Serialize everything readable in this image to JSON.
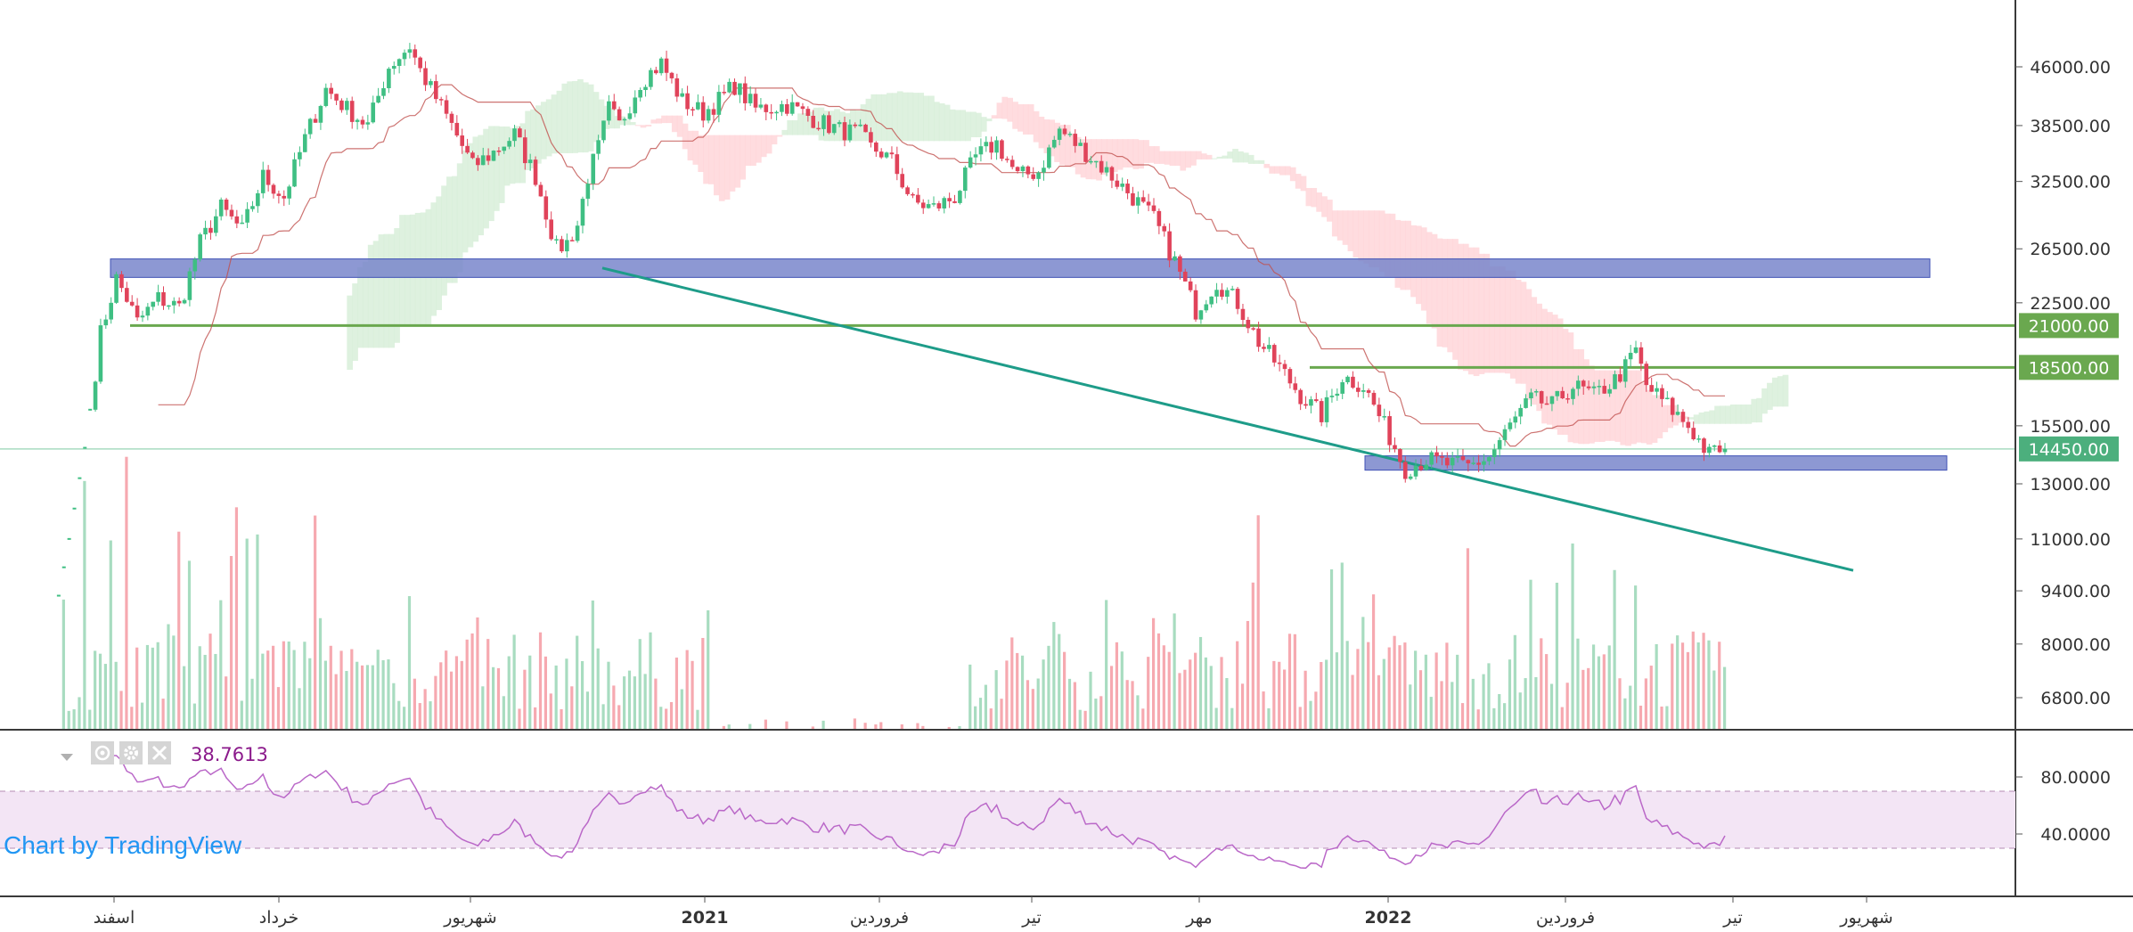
{
  "chart_data": {
    "type": "candlestick",
    "subtitle": "",
    "price_axis": {
      "scale": "log",
      "ticks": [
        "46000.00",
        "38500.00",
        "32500.00",
        "26500.00",
        "22500.00",
        "15500.00",
        "13000.00",
        "11000.00",
        "9400.00",
        "8000.00",
        "6800.00"
      ],
      "range": [
        6200,
        52000
      ]
    },
    "time_axis": {
      "labels": [
        "اسفند",
        "خرداد",
        "شهریور",
        "2021",
        "فروردین",
        "تیر",
        "مهر",
        "2022",
        "فروردین",
        "تیر",
        "شهریور"
      ],
      "bold_labels": [
        "2021",
        "2022"
      ]
    },
    "horizontal_levels": [
      {
        "label": "21000.00",
        "value": 21000,
        "color": "#6aa84f"
      },
      {
        "label": "18500.00",
        "value": 18500,
        "color": "#6aa84f"
      }
    ],
    "last_price": {
      "label": "14450.00",
      "value": 14450,
      "color": "#4caf7d"
    },
    "support_zones": [
      {
        "name": "upper-zone",
        "from": 24300,
        "to": 25700,
        "color": "#7986cb"
      },
      {
        "name": "lower-zone",
        "from": 13550,
        "to": 14150,
        "color": "#7986cb"
      }
    ],
    "trendline": {
      "from": 25000,
      "to": 10000,
      "color": "#1e9c89"
    },
    "series": [
      {
        "name": "close",
        "kind": "candles",
        "points": [
          [
            0,
            8500
          ],
          [
            3,
            11000
          ],
          [
            6,
            14500
          ],
          [
            9,
            20500
          ],
          [
            12,
            24200
          ],
          [
            14,
            22800
          ],
          [
            16,
            21200
          ],
          [
            20,
            22800
          ],
          [
            24,
            22200
          ],
          [
            28,
            27000
          ],
          [
            32,
            30000
          ],
          [
            36,
            28000
          ],
          [
            40,
            33000
          ],
          [
            44,
            31000
          ],
          [
            48,
            37000
          ],
          [
            52,
            43000
          ],
          [
            56,
            40500
          ],
          [
            60,
            38500
          ],
          [
            64,
            46000
          ],
          [
            68,
            49000
          ],
          [
            70,
            45500
          ],
          [
            72,
            43000
          ],
          [
            76,
            38500
          ],
          [
            80,
            34000
          ],
          [
            84,
            35500
          ],
          [
            88,
            37500
          ],
          [
            92,
            33000
          ],
          [
            96,
            26500
          ],
          [
            98,
            27000
          ],
          [
            100,
            28500
          ],
          [
            102,
            33000
          ],
          [
            104,
            36000
          ],
          [
            106,
            40500
          ],
          [
            108,
            38500
          ],
          [
            112,
            44000
          ],
          [
            116,
            46500
          ],
          [
            120,
            41500
          ],
          [
            124,
            40000
          ],
          [
            126,
            41000
          ],
          [
            130,
            43500
          ],
          [
            134,
            40500
          ],
          [
            140,
            41000
          ],
          [
            146,
            39000
          ],
          [
            150,
            38000
          ],
          [
            154,
            37500
          ],
          [
            156,
            36000
          ],
          [
            158,
            35500
          ],
          [
            160,
            34500
          ],
          [
            164,
            30500
          ],
          [
            168,
            30000
          ],
          [
            172,
            31000
          ],
          [
            176,
            35000
          ],
          [
            180,
            36500
          ],
          [
            184,
            33000
          ],
          [
            188,
            33500
          ],
          [
            192,
            38000
          ],
          [
            196,
            36000
          ],
          [
            200,
            34000
          ],
          [
            202,
            33000
          ],
          [
            206,
            31000
          ],
          [
            210,
            29000
          ],
          [
            214,
            25500
          ],
          [
            218,
            22000
          ],
          [
            222,
            24000
          ],
          [
            226,
            22500
          ],
          [
            230,
            20000
          ],
          [
            234,
            18500
          ],
          [
            238,
            17000
          ],
          [
            242,
            16000
          ],
          [
            246,
            18000
          ],
          [
            250,
            17500
          ],
          [
            254,
            15500
          ],
          [
            258,
            13600
          ],
          [
            262,
            14000
          ],
          [
            266,
            13800
          ],
          [
            270,
            13700
          ],
          [
            274,
            14100
          ],
          [
            278,
            15500
          ],
          [
            282,
            16800
          ],
          [
            286,
            16500
          ],
          [
            290,
            17500
          ],
          [
            294,
            17000
          ],
          [
            298,
            17800
          ],
          [
            300,
            18500
          ],
          [
            302,
            19500
          ],
          [
            304,
            17500
          ],
          [
            308,
            16500
          ],
          [
            312,
            15500
          ],
          [
            316,
            14200
          ],
          [
            318,
            14450
          ]
        ]
      },
      {
        "name": "RSI",
        "kind": "oscillator",
        "last": 38.7613
      }
    ],
    "volume_panel": true,
    "ichimoku_cloud": true
  },
  "rsi_panel": {
    "value_label": "38.7613",
    "ticks": [
      "80.0000",
      "40.0000"
    ],
    "upper": 70,
    "lower": 30,
    "band_color": "#f3e5f5",
    "line_color": "#ba68c8"
  },
  "watermark": "Chart by TradingView",
  "controls": {
    "collapse": "collapse-arrow-icon",
    "visibility": "eye-icon",
    "settings": "gear-icon",
    "remove": "close-icon"
  }
}
